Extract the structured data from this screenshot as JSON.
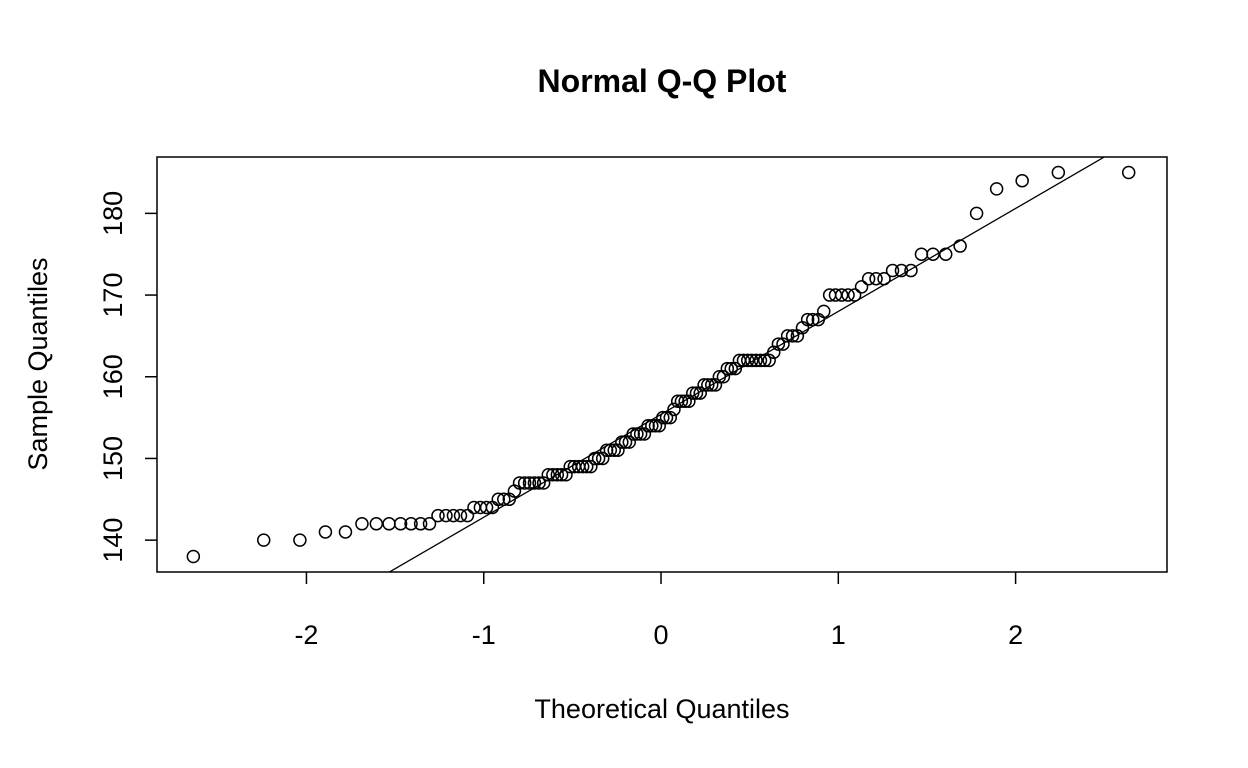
{
  "chart_data": {
    "type": "scatter",
    "title": "Normal Q-Q Plot",
    "x_label": "Theoretical Quantiles",
    "y_label": "Sample Quantiles",
    "series": [
      {
        "color": "#000000",
        "x": [
          -2.638,
          -2.241,
          -2.037,
          -1.893,
          -1.78,
          -1.687,
          -1.606,
          -1.534,
          -1.469,
          -1.41,
          -1.356,
          -1.306,
          -1.258,
          -1.213,
          -1.171,
          -1.131,
          -1.092,
          -1.055,
          -1.019,
          -0.984,
          -0.951,
          -0.918,
          -0.887,
          -0.856,
          -0.827,
          -0.798,
          -0.769,
          -0.742,
          -0.714,
          -0.688,
          -0.662,
          -0.636,
          -0.61,
          -0.585,
          -0.561,
          -0.536,
          -0.512,
          -0.489,
          -0.465,
          -0.442,
          -0.419,
          -0.396,
          -0.374,
          -0.352,
          -0.329,
          -0.307,
          -0.286,
          -0.264,
          -0.243,
          -0.221,
          -0.2,
          -0.179,
          -0.157,
          -0.136,
          -0.115,
          -0.094,
          -0.073,
          -0.052,
          -0.031,
          -0.01,
          0.01,
          0.031,
          0.052,
          0.073,
          0.094,
          0.115,
          0.136,
          0.157,
          0.179,
          0.2,
          0.221,
          0.243,
          0.264,
          0.286,
          0.307,
          0.329,
          0.352,
          0.374,
          0.396,
          0.419,
          0.442,
          0.465,
          0.489,
          0.512,
          0.536,
          0.561,
          0.585,
          0.61,
          0.636,
          0.662,
          0.688,
          0.714,
          0.742,
          0.769,
          0.798,
          0.827,
          0.856,
          0.887,
          0.918,
          0.951,
          0.984,
          1.019,
          1.055,
          1.092,
          1.131,
          1.171,
          1.213,
          1.258,
          1.306,
          1.356,
          1.41,
          1.469,
          1.534,
          1.606,
          1.687,
          1.78,
          1.893,
          2.037,
          2.241,
          2.638
        ],
        "values": [
          138,
          140,
          140,
          141,
          141,
          142,
          142,
          142,
          142,
          142,
          142,
          142,
          143,
          143,
          143,
          143,
          143,
          144,
          144,
          144,
          144,
          145,
          145,
          145,
          146,
          147,
          147,
          147,
          147,
          147,
          147,
          148,
          148,
          148,
          148,
          148,
          149,
          149,
          149,
          149,
          149,
          149,
          150,
          150,
          150,
          151,
          151,
          151,
          151,
          152,
          152,
          152,
          153,
          153,
          153,
          153,
          154,
          154,
          154,
          154,
          155,
          155,
          155,
          156,
          157,
          157,
          157,
          157,
          158,
          158,
          158,
          159,
          159,
          159,
          159,
          160,
          160,
          161,
          161,
          161,
          162,
          162,
          162,
          162,
          162,
          162,
          162,
          162,
          163,
          164,
          164,
          165,
          165,
          165,
          166,
          167,
          167,
          167,
          168,
          170,
          170,
          170,
          170,
          170,
          171,
          172,
          172,
          172,
          173,
          173,
          173,
          175,
          175,
          175,
          176,
          180,
          183,
          184,
          185,
          185
        ]
      }
    ],
    "line": {
      "intercept": 155.4,
      "slope": 12.6
    },
    "xlim": [
      -2.843,
      2.854
    ],
    "ylim": [
      136.1,
      186.9
    ],
    "xticks": [
      -2,
      -1,
      0,
      1,
      2
    ],
    "yticks": [
      140,
      150,
      160,
      170,
      180
    ]
  }
}
